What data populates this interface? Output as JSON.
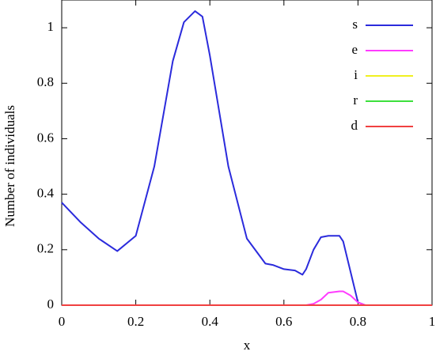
{
  "chart_data": {
    "type": "line",
    "xlabel": "x",
    "ylabel": "Number of individuals",
    "x": [
      0,
      0.05,
      0.1,
      0.15,
      0.2,
      0.25,
      0.3,
      0.33,
      0.36,
      0.38,
      0.4,
      0.45,
      0.5,
      0.55,
      0.57,
      0.6,
      0.63,
      0.65,
      0.66,
      0.68,
      0.7,
      0.72,
      0.75,
      0.76,
      0.78,
      0.8,
      0.82,
      0.9,
      1
    ],
    "series": [
      {
        "name": "s",
        "color": "#2b2bdc",
        "values": [
          0.37,
          0.3,
          0.24,
          0.195,
          0.25,
          0.5,
          0.88,
          1.02,
          1.06,
          1.04,
          0.9,
          0.5,
          0.24,
          0.15,
          0.145,
          0.13,
          0.125,
          0.11,
          0.13,
          0.2,
          0.245,
          0.25,
          0.25,
          0.23,
          0.12,
          0.01,
          0,
          0,
          0
        ]
      },
      {
        "name": "e",
        "color": "#ff3cff",
        "values": [
          0,
          0,
          0,
          0,
          0,
          0,
          0,
          0,
          0,
          0,
          0,
          0,
          0,
          0,
          0,
          0,
          0,
          0,
          0,
          0.005,
          0.02,
          0.045,
          0.05,
          0.05,
          0.035,
          0.01,
          0,
          0,
          0
        ]
      },
      {
        "name": "i",
        "color": "#f0f020",
        "values": [
          0,
          0,
          0,
          0,
          0,
          0,
          0,
          0,
          0,
          0,
          0,
          0,
          0,
          0,
          0,
          0,
          0,
          0,
          0,
          0,
          0,
          0,
          0,
          0,
          0,
          0,
          0,
          0,
          0
        ]
      },
      {
        "name": "r",
        "color": "#3ce03c",
        "values": [
          0,
          0,
          0,
          0,
          0,
          0,
          0,
          0,
          0,
          0,
          0,
          0,
          0,
          0,
          0,
          0,
          0,
          0,
          0,
          0,
          0,
          0,
          0,
          0,
          0,
          0,
          0,
          0,
          0
        ]
      },
      {
        "name": "d",
        "color": "#f04040",
        "values": [
          0,
          0,
          0,
          0,
          0,
          0,
          0,
          0,
          0,
          0,
          0,
          0,
          0,
          0,
          0,
          0,
          0,
          0,
          0,
          0,
          0,
          0,
          0,
          0,
          0,
          0,
          0,
          0,
          0
        ]
      }
    ],
    "xlim": [
      0,
      1
    ],
    "xticks": [
      0,
      0.2,
      0.4,
      0.6,
      0.8,
      1
    ],
    "ylim": [
      0,
      1.1
    ],
    "yticks": [
      0,
      0.2,
      0.4,
      0.6,
      0.8,
      1
    ],
    "legend": "upper right"
  }
}
